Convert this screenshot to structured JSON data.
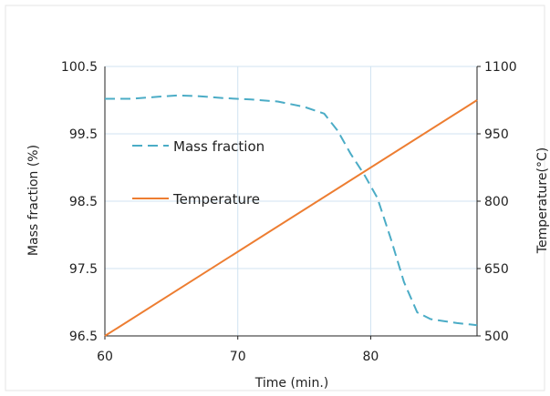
{
  "chart_data": {
    "type": "line",
    "xlabel": "Time (min.)",
    "ylabel_left": "Mass fraction (%)",
    "ylabel_right": "Temperature(°C)",
    "xlim": [
      60,
      88
    ],
    "ylim_left": [
      96.5,
      100.5
    ],
    "ylim_right": [
      500,
      1100
    ],
    "x_ticks": [
      60,
      70,
      80
    ],
    "y_left_ticks": [
      "96.5",
      "97.5",
      "98.5",
      "99.5",
      "100.5"
    ],
    "y_right_ticks": [
      "500",
      "650",
      "800",
      "950",
      "1100"
    ],
    "grid": true,
    "legend_placement": "upper-left inside",
    "series": [
      {
        "name": "Mass fraction",
        "axis": "left",
        "style": "dashed",
        "color": "#4bacc6",
        "x": [
          60,
          62,
          64,
          65.5,
          67,
          69,
          71,
          73,
          75,
          76.5,
          77.5,
          78.5,
          79.5,
          80.5,
          81.5,
          82.5,
          83.5,
          84.5,
          85.5,
          86.5,
          87.5,
          88
        ],
        "y": [
          100.02,
          100.02,
          100.05,
          100.07,
          100.06,
          100.03,
          100.01,
          99.98,
          99.9,
          99.8,
          99.55,
          99.2,
          98.9,
          98.55,
          97.95,
          97.3,
          96.85,
          96.75,
          96.72,
          96.69,
          96.67,
          96.66
        ]
      },
      {
        "name": "Temperature",
        "axis": "right",
        "style": "solid",
        "color": "#ed7d31",
        "x": [
          60,
          88
        ],
        "y": [
          500,
          1025
        ]
      }
    ]
  }
}
